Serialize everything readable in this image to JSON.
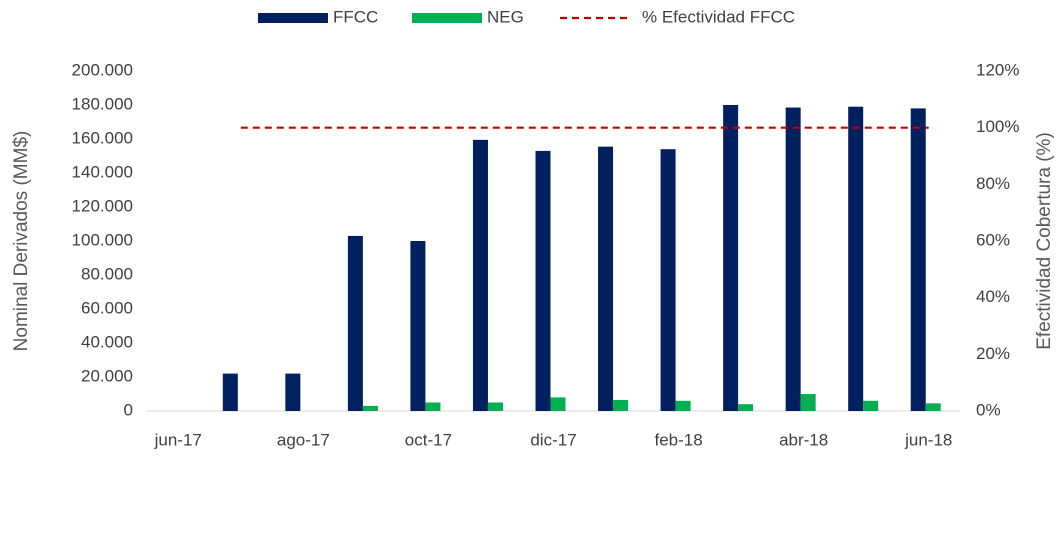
{
  "chart_data": {
    "type": "bar",
    "categories": [
      "jun-17",
      null,
      "ago-17",
      null,
      "oct-17",
      null,
      "dic-17",
      null,
      "feb-18",
      null,
      "abr-18",
      null,
      "jun-18"
    ],
    "series": [
      {
        "name": "FFCC",
        "type": "bar",
        "color": "#002060",
        "values": [
          null,
          22000,
          22000,
          103000,
          100000,
          159500,
          153000,
          155500,
          154000,
          180000,
          178500,
          179000,
          178000
        ]
      },
      {
        "name": "NEG",
        "type": "bar",
        "color": "#00b050",
        "values": [
          null,
          null,
          null,
          3000,
          5000,
          5000,
          8000,
          6500,
          6000,
          4000,
          10000,
          6000,
          4500
        ]
      },
      {
        "name": "% Efectividad FFCC",
        "type": "line",
        "axis": "y2",
        "color": "#c00000",
        "values": [
          null,
          100,
          100,
          100,
          100,
          100,
          100,
          100,
          100,
          100,
          100,
          100,
          100
        ]
      }
    ],
    "ylabel": "Nominal Derivados (MM$)",
    "y2label": "Efectividad Cobertura (%)",
    "ylim": [
      0,
      200000
    ],
    "yticks": [
      0,
      {
        "value": 20000,
        "label": "20.000"
      },
      {
        "value": 40000,
        "label": "40.000"
      },
      {
        "value": 60000,
        "label": "60.000"
      },
      {
        "value": 80000,
        "label": "80.000"
      },
      {
        "value": 100000,
        "label": "100.000"
      },
      {
        "value": 120000,
        "label": "120.000"
      },
      {
        "value": 140000,
        "label": "140.000"
      },
      {
        "value": 160000,
        "label": "160.000"
      },
      {
        "value": 180000,
        "label": "180.000"
      },
      {
        "value": 200000,
        "label": "200.000"
      }
    ],
    "y2lim": [
      0,
      120
    ],
    "y2ticks": [
      {
        "value": 0,
        "label": "0%"
      },
      {
        "value": 20,
        "label": "20%"
      },
      {
        "value": 40,
        "label": "40%"
      },
      {
        "value": 60,
        "label": "60%"
      },
      {
        "value": 80,
        "label": "80%"
      },
      {
        "value": 100,
        "label": "100%"
      },
      {
        "value": 120,
        "label": "120%"
      }
    ],
    "legend": "top"
  }
}
